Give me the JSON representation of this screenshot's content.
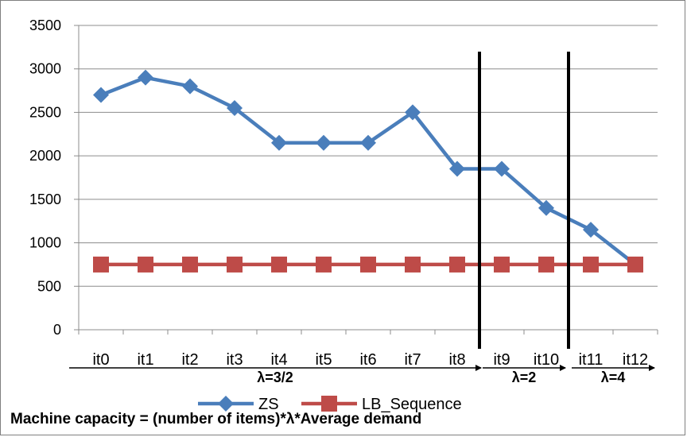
{
  "chart_data": {
    "type": "line",
    "title": "",
    "xlabel": "",
    "ylabel": "",
    "categories": [
      "it0",
      "it1",
      "it2",
      "it3",
      "it4",
      "it5",
      "it6",
      "it7",
      "it8",
      "it9",
      "it10",
      "it11",
      "it12"
    ],
    "ylim": [
      0,
      3500
    ],
    "yticks": [
      0,
      500,
      1000,
      1500,
      2000,
      2500,
      3000,
      3500
    ],
    "grid": "horizontal",
    "legend_position": "bottom",
    "series": [
      {
        "name": "ZS",
        "values": [
          2700,
          2900,
          2800,
          2550,
          2150,
          2150,
          2150,
          2500,
          1850,
          1850,
          1400,
          1150,
          750
        ],
        "color": "#4a7ebb",
        "marker": "diamond"
      },
      {
        "name": "LB_Sequence",
        "values": [
          750,
          750,
          750,
          750,
          750,
          750,
          750,
          750,
          750,
          750,
          750,
          750,
          750
        ],
        "color": "#be4b48",
        "marker": "square"
      }
    ],
    "separators_after": [
      "it8",
      "it10"
    ],
    "annotations": [
      {
        "label": "λ=3/2",
        "from": "it0",
        "to": "it8"
      },
      {
        "label": "λ=2",
        "from": "it9",
        "to": "it10"
      },
      {
        "label": "λ=4",
        "from": "it11",
        "to": "it12"
      }
    ]
  },
  "footnote": "Machine capacity = (number of items)*λ*Average demand"
}
